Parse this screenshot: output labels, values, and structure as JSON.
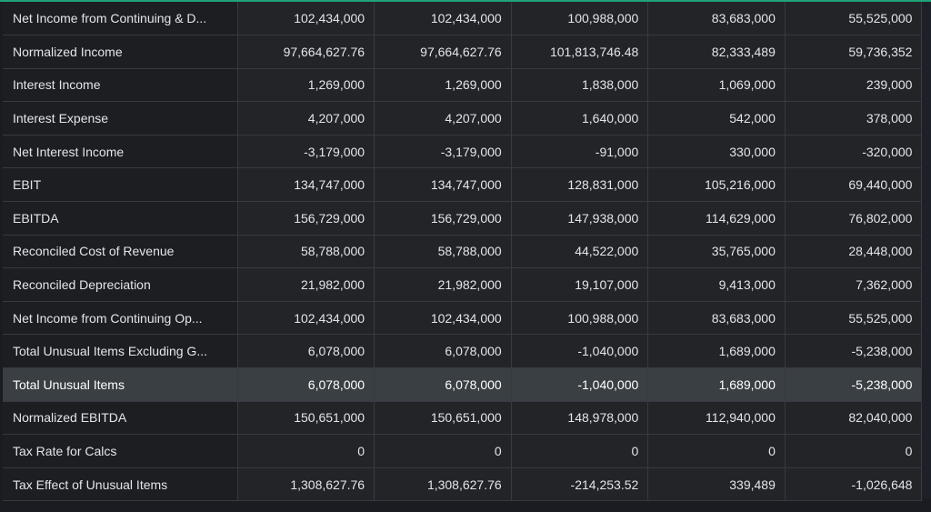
{
  "table": {
    "rows": [
      {
        "label": "Net Income from Continuing & D...",
        "values": [
          "102,434,000",
          "102,434,000",
          "100,988,000",
          "83,683,000",
          "55,525,000"
        ]
      },
      {
        "label": "Normalized Income",
        "values": [
          "97,664,627.76",
          "97,664,627.76",
          "101,813,746.48",
          "82,333,489",
          "59,736,352"
        ]
      },
      {
        "label": "Interest Income",
        "values": [
          "1,269,000",
          "1,269,000",
          "1,838,000",
          "1,069,000",
          "239,000"
        ]
      },
      {
        "label": "Interest Expense",
        "values": [
          "4,207,000",
          "4,207,000",
          "1,640,000",
          "542,000",
          "378,000"
        ]
      },
      {
        "label": "Net Interest Income",
        "values": [
          "-3,179,000",
          "-3,179,000",
          "-91,000",
          "330,000",
          "-320,000"
        ]
      },
      {
        "label": "EBIT",
        "values": [
          "134,747,000",
          "134,747,000",
          "128,831,000",
          "105,216,000",
          "69,440,000"
        ]
      },
      {
        "label": "EBITDA",
        "values": [
          "156,729,000",
          "156,729,000",
          "147,938,000",
          "114,629,000",
          "76,802,000"
        ]
      },
      {
        "label": "Reconciled Cost of Revenue",
        "values": [
          "58,788,000",
          "58,788,000",
          "44,522,000",
          "35,765,000",
          "28,448,000"
        ]
      },
      {
        "label": "Reconciled Depreciation",
        "values": [
          "21,982,000",
          "21,982,000",
          "19,107,000",
          "9,413,000",
          "7,362,000"
        ]
      },
      {
        "label": "Net Income from Continuing Op...",
        "values": [
          "102,434,000",
          "102,434,000",
          "100,988,000",
          "83,683,000",
          "55,525,000"
        ]
      },
      {
        "label": "Total Unusual Items Excluding G...",
        "values": [
          "6,078,000",
          "6,078,000",
          "-1,040,000",
          "1,689,000",
          "-5,238,000"
        ]
      },
      {
        "label": "Total Unusual Items",
        "values": [
          "6,078,000",
          "6,078,000",
          "-1,040,000",
          "1,689,000",
          "-5,238,000"
        ],
        "highlighted": true
      },
      {
        "label": "Normalized EBITDA",
        "values": [
          "150,651,000",
          "150,651,000",
          "148,978,000",
          "112,940,000",
          "82,040,000"
        ]
      },
      {
        "label": "Tax Rate for Calcs",
        "values": [
          "0",
          "0",
          "0",
          "0",
          "0"
        ]
      },
      {
        "label": "Tax Effect of Unusual Items",
        "values": [
          "1,308,627.76",
          "1,308,627.76",
          "-214,253.52",
          "339,489",
          "-1,026,648"
        ]
      }
    ]
  },
  "colors": {
    "accent": "#1fa277",
    "background": "#1a1c22",
    "cell": "#222428",
    "highlight_row": "#3a3f44"
  }
}
